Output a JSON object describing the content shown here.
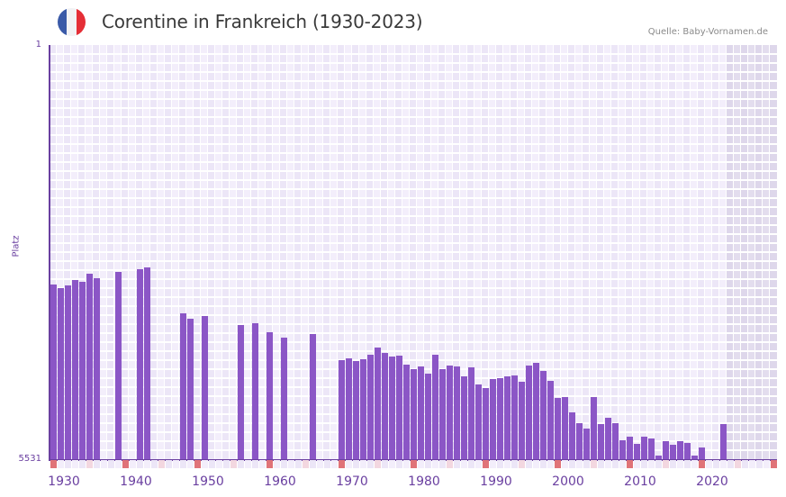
{
  "header": {
    "title": "Corentine in Frankreich (1930-2023)",
    "source": "Quelle: Baby-Vornamen.de",
    "flag_icon": "france-flag-icon",
    "flag_colors": [
      "#3a5aa8",
      "#f2f2f4",
      "#e52e36"
    ]
  },
  "axis": {
    "y_top": "1",
    "y_bottom": "5531",
    "y_label": "Platz"
  },
  "colors": {
    "bar": "#8b56c6",
    "axis": "#6a3fa0",
    "decade_marker": "#e07378",
    "midyear_marker": "#f3d7e0",
    "grid_a": "#f3eefb",
    "grid_b": "#ece6f7"
  },
  "chart_data": {
    "type": "bar",
    "title": "Corentine in Frankreich (1930-2023)",
    "xlabel": "",
    "ylabel": "Platz",
    "y_inverted": true,
    "ylim": [
      1,
      5531
    ],
    "x_range": [
      1930,
      2030
    ],
    "x_ticks": [
      "1930",
      "1940",
      "1950",
      "1960",
      "1970",
      "1980",
      "1990",
      "2000",
      "2010",
      "2020"
    ],
    "grid": true,
    "legend": null,
    "x": [
      1930,
      1931,
      1932,
      1933,
      1934,
      1935,
      1936,
      1939,
      1942,
      1943,
      1948,
      1949,
      1951,
      1956,
      1958,
      1960,
      1962,
      1966,
      1970,
      1971,
      1972,
      1973,
      1974,
      1975,
      1976,
      1977,
      1978,
      1979,
      1980,
      1981,
      1982,
      1983,
      1984,
      1985,
      1986,
      1987,
      1988,
      1989,
      1990,
      1991,
      1992,
      1993,
      1994,
      1995,
      1996,
      1997,
      1998,
      1999,
      2000,
      2001,
      2002,
      2003,
      2004,
      2005,
      2006,
      2007,
      2008,
      2009,
      2010,
      2011,
      2012,
      2013,
      2014,
      2015,
      2016,
      2017,
      2018,
      2019,
      2020,
      2023
    ],
    "values": [
      3198,
      3246,
      3210,
      3138,
      3162,
      3054,
      3114,
      3030,
      2994,
      2970,
      3583,
      3655,
      3619,
      3739,
      3715,
      3835,
      3907,
      3859,
      4208,
      4184,
      4220,
      4196,
      4136,
      4040,
      4112,
      4160,
      4148,
      4268,
      4328,
      4292,
      4388,
      4136,
      4328,
      4280,
      4292,
      4424,
      4304,
      4532,
      4580,
      4460,
      4448,
      4424,
      4412,
      4496,
      4280,
      4244,
      4352,
      4484,
      4713,
      4701,
      4905,
      5049,
      5121,
      4701,
      5061,
      4977,
      5049,
      5277,
      5229,
      5325,
      5229,
      5253,
      5481,
      5289,
      5337,
      5289,
      5313,
      5481,
      5373,
      5061
    ]
  }
}
